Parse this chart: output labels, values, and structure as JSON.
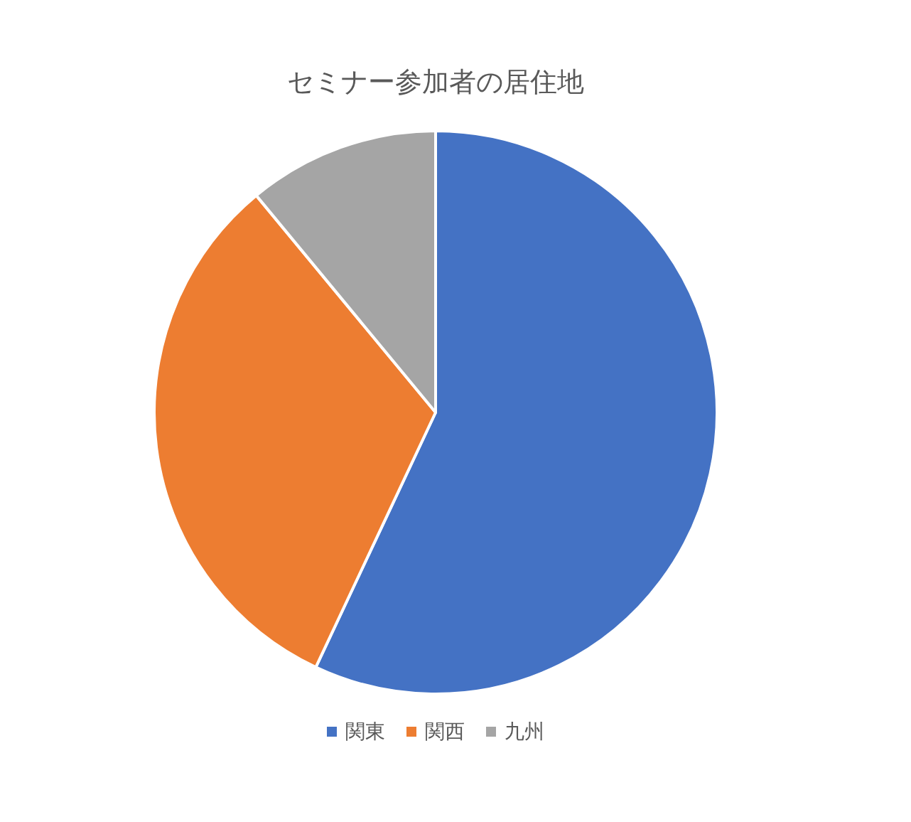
{
  "chart_data": {
    "type": "pie",
    "title": "セミナー参加者の居住地",
    "categories": [
      "関東",
      "関西",
      "九州"
    ],
    "values": [
      57,
      32,
      11
    ],
    "colors": [
      "#4472c4",
      "#ed7d31",
      "#a5a5a5"
    ],
    "legend": "bottom"
  }
}
